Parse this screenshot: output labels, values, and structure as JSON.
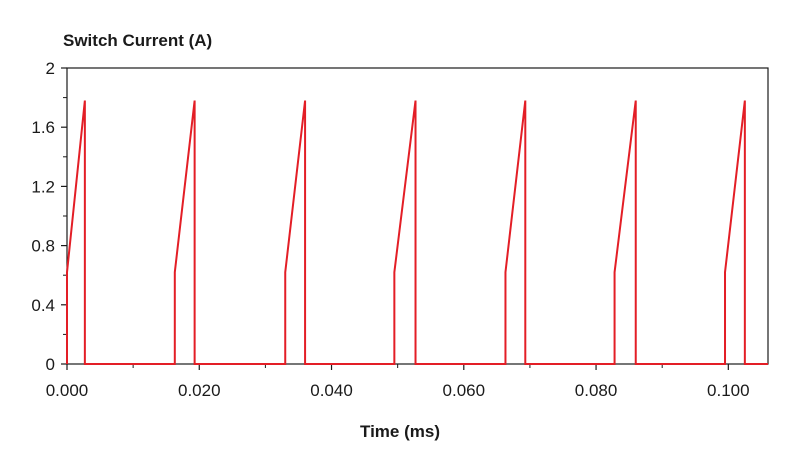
{
  "chart_data": {
    "type": "line",
    "title": "Switch Current (A)",
    "xlabel": "Time (ms)",
    "ylabel": "",
    "xlim": [
      0.0,
      0.106
    ],
    "ylim": [
      0,
      2
    ],
    "grid": false,
    "legend": "none",
    "x_ticks": [
      0.0,
      0.02,
      0.04,
      0.06,
      0.08,
      0.1
    ],
    "x_tick_labels": [
      "0.000",
      "0.020",
      "0.040",
      "0.060",
      "0.080",
      "0.100"
    ],
    "y_ticks": [
      0,
      0.4,
      0.8,
      1.2,
      1.6,
      2
    ],
    "y_tick_labels": [
      "0",
      "0.4",
      "0.8",
      "1.2",
      "1.6",
      "2"
    ],
    "series": [
      {
        "color": "#e31e26",
        "x": [
          0.0,
          0.0,
          0.0027,
          0.0027,
          0.0163,
          0.0163,
          0.0193,
          0.0193,
          0.033,
          0.033,
          0.036,
          0.036,
          0.0495,
          0.0495,
          0.0527,
          0.0527,
          0.0663,
          0.0663,
          0.0693,
          0.0693,
          0.0828,
          0.0828,
          0.086,
          0.086,
          0.0995,
          0.0995,
          0.1025,
          0.1025,
          0.106
        ],
        "y": [
          0.0,
          0.62,
          1.78,
          0.0,
          0.0,
          0.62,
          1.78,
          0.0,
          0.0,
          0.62,
          1.78,
          0.0,
          0.0,
          0.62,
          1.78,
          0.0,
          0.0,
          0.62,
          1.78,
          0.0,
          0.0,
          0.62,
          1.78,
          0.0,
          0.0,
          0.62,
          1.78,
          0.0,
          0.0
        ]
      }
    ],
    "colors": {
      "axis": "#1a1a1a",
      "text": "#1a1a1a",
      "series": "#e31e26"
    }
  }
}
